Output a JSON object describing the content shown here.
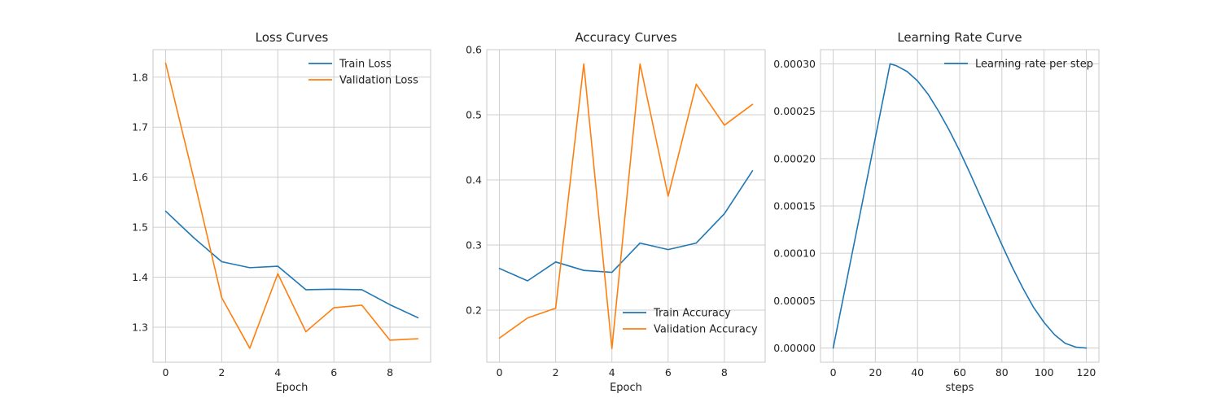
{
  "chart_data": [
    {
      "type": "line",
      "title": "Loss Curves",
      "xlabel": "Epoch",
      "ylabel": "",
      "xlim": [
        -0.45,
        9.45
      ],
      "ylim": [
        1.23,
        1.855
      ],
      "xticks": [
        0,
        2,
        4,
        6,
        8
      ],
      "yticks": [
        1.3,
        1.4,
        1.5,
        1.6,
        1.7,
        1.8
      ],
      "ytick_decimals": 1,
      "legend": "top-right",
      "grid": true,
      "series": [
        {
          "name": "Train Loss",
          "color": "#1f77b4",
          "x": [
            0,
            1,
            2,
            3,
            4,
            5,
            6,
            7,
            8,
            9
          ],
          "y": [
            1.532,
            1.479,
            1.431,
            1.419,
            1.422,
            1.375,
            1.376,
            1.375,
            1.345,
            1.319
          ]
        },
        {
          "name": "Validation Loss",
          "color": "#ff7f0e",
          "x": [
            0,
            1,
            2,
            3,
            4,
            5,
            6,
            7,
            8,
            9
          ],
          "y": [
            1.828,
            1.598,
            1.359,
            1.258,
            1.407,
            1.291,
            1.339,
            1.344,
            1.274,
            1.277
          ]
        }
      ]
    },
    {
      "type": "line",
      "title": "Accuracy Curves",
      "xlabel": "Epoch",
      "ylabel": "",
      "xlim": [
        -0.45,
        9.45
      ],
      "ylim": [
        0.12,
        0.6
      ],
      "xticks": [
        0,
        2,
        4,
        6,
        8
      ],
      "yticks": [
        0.2,
        0.3,
        0.4,
        0.5,
        0.6
      ],
      "ytick_decimals": 1,
      "legend": "bottom-right",
      "grid": true,
      "series": [
        {
          "name": "Train Accuracy",
          "color": "#1f77b4",
          "x": [
            0,
            1,
            2,
            3,
            4,
            5,
            6,
            7,
            8,
            9
          ],
          "y": [
            0.264,
            0.245,
            0.274,
            0.261,
            0.258,
            0.303,
            0.293,
            0.303,
            0.348,
            0.414
          ]
        },
        {
          "name": "Validation Accuracy",
          "color": "#ff7f0e",
          "x": [
            0,
            1,
            2,
            3,
            4,
            5,
            6,
            7,
            8,
            9
          ],
          "y": [
            0.157,
            0.188,
            0.203,
            0.578,
            0.141,
            0.578,
            0.375,
            0.547,
            0.484,
            0.516
          ]
        }
      ]
    },
    {
      "type": "line",
      "title": "Learning Rate Curve",
      "xlabel": "steps",
      "ylabel": "",
      "xlim": [
        -6,
        126
      ],
      "ylim": [
        -1.5e-05,
        0.000315
      ],
      "xticks": [
        0,
        20,
        40,
        60,
        80,
        100,
        120
      ],
      "yticks": [
        0,
        5e-05,
        0.0001,
        0.00015,
        0.0002,
        0.00025,
        0.0003
      ],
      "ytick_decimals": 5,
      "legend": "top-right",
      "grid": true,
      "series": [
        {
          "name": "Learning rate per step",
          "color": "#1f77b4",
          "x": [
            0,
            10,
            20,
            27,
            30,
            35,
            40,
            45,
            50,
            55,
            60,
            65,
            70,
            75,
            80,
            85,
            90,
            95,
            100,
            105,
            110,
            115,
            120
          ],
          "y": [
            0.0,
            0.000111,
            0.000222,
            0.0003,
            0.000298,
            0.000292,
            0.000282,
            0.000268,
            0.00025,
            0.00023,
            0.000208,
            0.000184,
            0.000159,
            0.000134,
            0.000109,
            8.5e-05,
            6.3e-05,
            4.3e-05,
            2.7e-05,
            1.4e-05,
            5e-06,
            1e-06,
            0.0
          ]
        }
      ]
    }
  ]
}
